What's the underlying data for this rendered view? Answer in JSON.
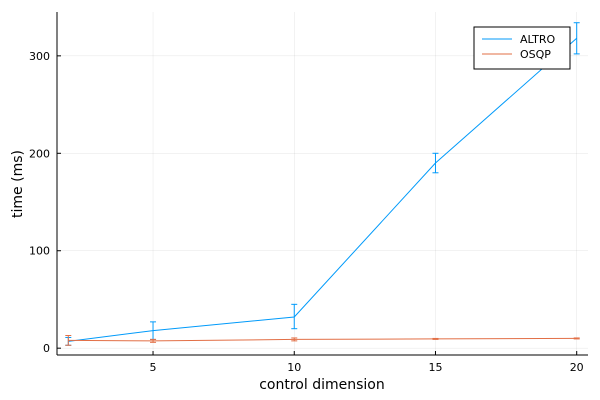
{
  "chart_data": {
    "type": "line",
    "title": "",
    "xlabel": "control dimension",
    "ylabel": "time (ms)",
    "xlim": [
      1.6,
      20.4
    ],
    "ylim": [
      -7,
      345
    ],
    "x_ticks": [
      5,
      10,
      15,
      20
    ],
    "y_ticks": [
      0,
      100,
      200,
      300
    ],
    "grid": true,
    "legend_position": "top-right",
    "series": [
      {
        "name": "ALTRO",
        "color": "#009AFA",
        "x": [
          2,
          5,
          10,
          15,
          20
        ],
        "y": [
          7,
          18,
          32,
          190,
          318
        ],
        "err_low": [
          4,
          9,
          12,
          10,
          16
        ],
        "err_high": [
          4,
          9,
          13,
          10,
          16
        ]
      },
      {
        "name": "OSQP",
        "color": "#E26F46",
        "x": [
          2,
          5,
          10,
          15,
          20
        ],
        "y": [
          8,
          7.5,
          9,
          9.5,
          10
        ],
        "err_low": [
          5,
          1.5,
          1.5,
          0.5,
          0.5
        ],
        "err_high": [
          5,
          1.5,
          1.5,
          0.5,
          0.5
        ]
      }
    ]
  }
}
